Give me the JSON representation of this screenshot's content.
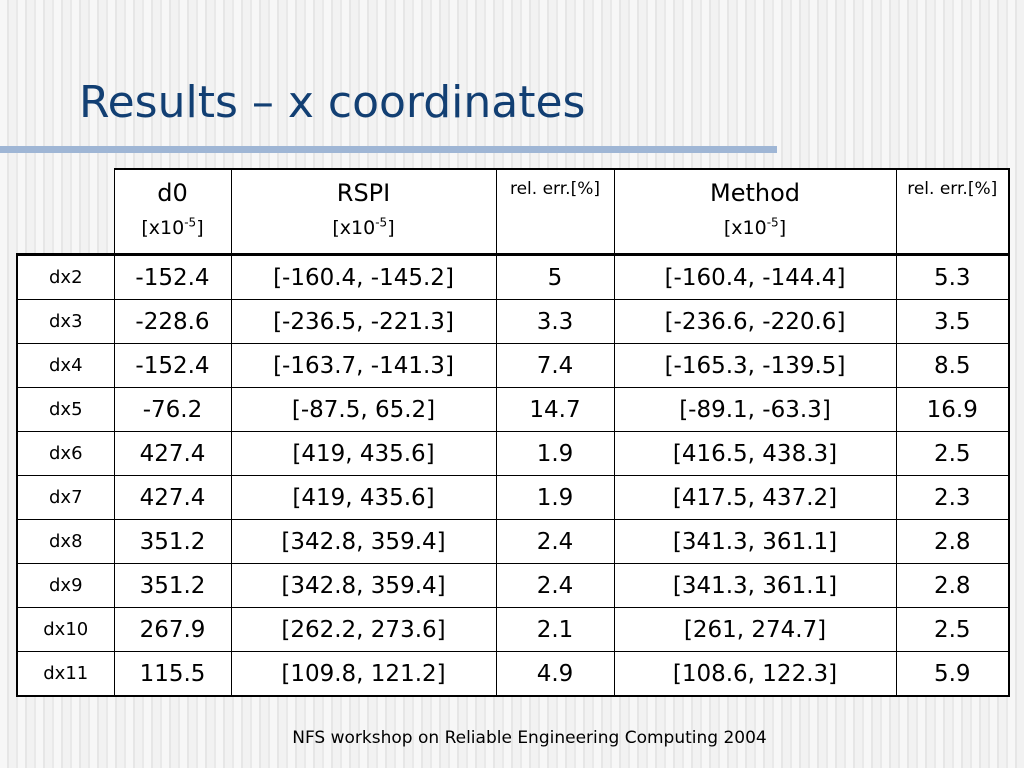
{
  "slide": {
    "title": "Results – x coordinates",
    "footer": "NFS workshop on Reliable Engineering Computing 2004"
  },
  "table": {
    "header_cells": [
      {
        "main": "d0",
        "unit": "[x10",
        "exp": "-5",
        "close": "]"
      },
      {
        "main": "RSPI",
        "unit": "[x10",
        "exp": "-5",
        "close": "]"
      },
      {
        "small": "rel. err.[%]"
      },
      {
        "main": "Method",
        "unit": "[x10",
        "exp": "-5",
        "close": "]"
      },
      {
        "small": "rel. err.[%]"
      }
    ],
    "rows": [
      {
        "label": "dx2",
        "d0": "-152.4",
        "rspi": "[-160.4, -145.2]",
        "rspi_err": "5",
        "method": "[-160.4, -144.4]",
        "method_err": "5.3"
      },
      {
        "label": "dx3",
        "d0": "-228.6",
        "rspi": "[-236.5, -221.3]",
        "rspi_err": "3.3",
        "method": "[-236.6, -220.6]",
        "method_err": "3.5"
      },
      {
        "label": "dx4",
        "d0": "-152.4",
        "rspi": "[-163.7, -141.3]",
        "rspi_err": "7.4",
        "method": "[-165.3, -139.5]",
        "method_err": "8.5"
      },
      {
        "label": "dx5",
        "d0": "-76.2",
        "rspi": "[-87.5, 65.2]",
        "rspi_err": "14.7",
        "method": "[-89.1, -63.3]",
        "method_err": "16.9"
      },
      {
        "label": "dx6",
        "d0": "427.4",
        "rspi": "[419, 435.6]",
        "rspi_err": "1.9",
        "method": "[416.5, 438.3]",
        "method_err": "2.5"
      },
      {
        "label": "dx7",
        "d0": "427.4",
        "rspi": "[419, 435.6]",
        "rspi_err": "1.9",
        "method": "[417.5, 437.2]",
        "method_err": "2.3"
      },
      {
        "label": "dx8",
        "d0": "351.2",
        "rspi": "[342.8, 359.4]",
        "rspi_err": "2.4",
        "method": "[341.3, 361.1]",
        "method_err": "2.8"
      },
      {
        "label": "dx9",
        "d0": "351.2",
        "rspi": "[342.8, 359.4]",
        "rspi_err": "2.4",
        "method": "[341.3, 361.1]",
        "method_err": "2.8"
      },
      {
        "label": "dx10",
        "d0": "267.9",
        "rspi": "[262.2, 273.6]",
        "rspi_err": "2.1",
        "method": "[261, 274.7]",
        "method_err": "2.5"
      },
      {
        "label": "dx11",
        "d0": "115.5",
        "rspi": "[109.8, 121.2]",
        "rspi_err": "4.9",
        "method": "[108.6, 122.3]",
        "method_err": "5.9"
      }
    ]
  }
}
